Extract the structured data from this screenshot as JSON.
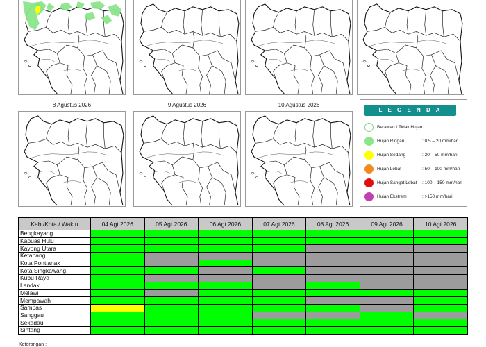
{
  "maps": [
    {
      "title": ""
    },
    {
      "title": ""
    },
    {
      "title": ""
    },
    {
      "title": ""
    },
    {
      "title": "8 Agustus 2026"
    },
    {
      "title": "9 Agustus 2026"
    },
    {
      "title": "10 Agustus 2026"
    }
  ],
  "legend": {
    "title": "L E G E N D A",
    "items": [
      {
        "label": "Berawan / Tidak Hujan",
        "range": "",
        "color": "#ffffff"
      },
      {
        "label": "Hujan Ringan",
        "range": ": 0.5 – 20 mm/hari",
        "color": "#8be58b"
      },
      {
        "label": "Hujan Sedang",
        "range": ": 20 – 50 mm/hari",
        "color": "#ffff00"
      },
      {
        "label": "Hujan Lebat",
        "range": ": 50 – 100 mm/hari",
        "color": "#f08c1e"
      },
      {
        "label": "Hujan Sangat Lebat",
        "range": ": 100 – 150 mm/hari",
        "color": "#e01010"
      },
      {
        "label": "Hujan Ekstrem",
        "range": ": >150 mm/hari",
        "color": "#c040b0"
      }
    ]
  },
  "table": {
    "header_label": "Kab./Kota / Waktu",
    "dates": [
      "04 Agt 2026",
      "05 Agt 2026",
      "06 Agt 2026",
      "07 Agt 2026",
      "08 Agt 2026",
      "09 Agt 2026",
      "10 Agt 2026"
    ],
    "rows": [
      {
        "name": "Bengkayang",
        "cells": [
          "g",
          "g",
          "g",
          "g",
          "g",
          "g",
          "g"
        ]
      },
      {
        "name": "Kapuas Hulu",
        "cells": [
          "g",
          "g",
          "g",
          "g",
          "g",
          "g",
          "g"
        ]
      },
      {
        "name": "Kayong Utara",
        "cells": [
          "g",
          "g",
          "g",
          "g",
          "x",
          "x",
          "x"
        ]
      },
      {
        "name": "Ketapang",
        "cells": [
          "g",
          "x",
          "x",
          "x",
          "x",
          "x",
          "x"
        ]
      },
      {
        "name": "Kota Pontianak",
        "cells": [
          "g",
          "x",
          "g",
          "x",
          "x",
          "x",
          "x"
        ]
      },
      {
        "name": "Kota Singkawang",
        "cells": [
          "g",
          "g",
          "x",
          "g",
          "x",
          "x",
          "x"
        ]
      },
      {
        "name": "Kubu Raya",
        "cells": [
          "g",
          "x",
          "x",
          "x",
          "x",
          "x",
          "x"
        ]
      },
      {
        "name": "Landak",
        "cells": [
          "g",
          "g",
          "g",
          "x",
          "g",
          "x",
          "x"
        ]
      },
      {
        "name": "Melawi",
        "cells": [
          "g",
          "x",
          "g",
          "g",
          "g",
          "g",
          "g"
        ]
      },
      {
        "name": "Mempawah",
        "cells": [
          "g",
          "g",
          "g",
          "g",
          "x",
          "x",
          "g"
        ]
      },
      {
        "name": "Sambas",
        "cells": [
          "y",
          "g",
          "g",
          "g",
          "g",
          "x",
          "g"
        ]
      },
      {
        "name": "Sanggau",
        "cells": [
          "g",
          "g",
          "g",
          "x",
          "x",
          "g",
          "x"
        ]
      },
      {
        "name": "Sekadau",
        "cells": [
          "g",
          "g",
          "g",
          "g",
          "g",
          "g",
          "g"
        ]
      },
      {
        "name": "Sintang",
        "cells": [
          "g",
          "g",
          "g",
          "g",
          "g",
          "g",
          "g"
        ]
      }
    ],
    "colors": {
      "g": "#00ff00",
      "x": "#9c9c9c",
      "y": "#ffff00"
    }
  },
  "note": "Keterangan :"
}
